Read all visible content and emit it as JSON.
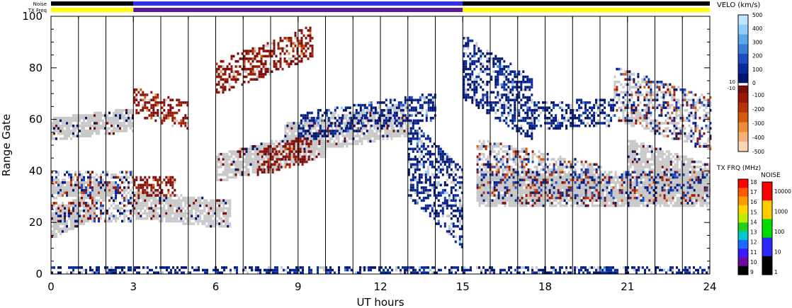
{
  "chart_data": {
    "type": "heatmap",
    "title": "",
    "xlabel": "UT hours",
    "ylabel": "Range Gate",
    "x_ticks": [
      "0",
      "3",
      "6",
      "9",
      "12",
      "15",
      "18",
      "21",
      "24"
    ],
    "y_ticks": [
      "0",
      "20",
      "40",
      "60",
      "80",
      "100"
    ],
    "xlim": [
      0,
      24
    ],
    "ylim": [
      0,
      100
    ],
    "grid": "vertical lines every hour",
    "top_strips": {
      "noise_label": "Noise",
      "txfreq_label": "TX Freq",
      "txfreq_segments": [
        {
          "from": 0,
          "to": 3,
          "color": "#ffff00"
        },
        {
          "from": 3,
          "to": 15,
          "color": "#5a1a9a"
        },
        {
          "from": 15,
          "to": 24,
          "color": "#ffff00"
        }
      ],
      "noise_color_early": "#000000",
      "noise_color_mid": "#3030e0"
    },
    "colorbar_velocity": {
      "title": "VELO (km/s)",
      "ticks_pos": [
        "500",
        "400",
        "300",
        "200",
        "100",
        "0"
      ],
      "ticks_neg": [
        "-100",
        "-200",
        "-300",
        "-400",
        "-500"
      ],
      "mid_labels": [
        "10",
        "-10"
      ],
      "colors": [
        "#bfe6ff",
        "#8ccfff",
        "#5aa8ec",
        "#3a7ed8",
        "#1e4cc0",
        "#0a2a9a",
        "#00156e",
        "#7a0d0d",
        "#9a1a08",
        "#b83408",
        "#d45a12",
        "#ee8a38",
        "#f7b27a",
        "#fbd6b4"
      ]
    },
    "colorbar_txfreq": {
      "title": "TX FRQ (MHz)",
      "ticks": [
        "18",
        "17",
        "16",
        "15",
        "14",
        "13",
        "12",
        "11",
        "10",
        "9"
      ],
      "colors": [
        "#ff0000",
        "#ff5a00",
        "#ff9a00",
        "#ffd400",
        "#b8f000",
        "#20d020",
        "#00c8c8",
        "#1a6aff",
        "#3a1aff",
        "#6a0aa0",
        "#000000"
      ]
    },
    "colorbar_noise": {
      "title": "NOISE",
      "ticks": [
        "10000",
        "1000",
        "100",
        "10",
        "1"
      ],
      "colors": [
        "#ff0000",
        "#ffcc00",
        "#00dd00",
        "#2a2aff",
        "#000000"
      ]
    },
    "echo_bands": [
      {
        "kind": "ground",
        "t0": 0.0,
        "t1": 3.0,
        "g0": 52,
        "g1": 60,
        "drift": 4
      },
      {
        "kind": "ground",
        "t0": 0.0,
        "t1": 1.6,
        "g0": 14,
        "g1": 24,
        "drift": 8
      },
      {
        "kind": "ground",
        "t0": 0.0,
        "t1": 2.4,
        "g0": 30,
        "g1": 36,
        "drift": 0
      },
      {
        "kind": "ground",
        "t0": 3.0,
        "t1": 6.5,
        "g0": 22,
        "g1": 32,
        "drift": -4
      },
      {
        "kind": "ground",
        "t0": 6.0,
        "t1": 10.0,
        "g0": 36,
        "g1": 46,
        "drift": 10
      },
      {
        "kind": "ground",
        "t0": 8.5,
        "t1": 13.0,
        "g0": 46,
        "g1": 58,
        "drift": 8
      },
      {
        "kind": "ground",
        "t0": 15.5,
        "t1": 24.0,
        "g0": 26,
        "g1": 38,
        "drift": 0
      },
      {
        "kind": "ground",
        "t0": 21.0,
        "t1": 24.0,
        "g0": 40,
        "g1": 52,
        "drift": -10
      },
      {
        "kind": "neg",
        "t0": 3.0,
        "t1": 5.0,
        "g0": 62,
        "g1": 72,
        "drift": -6
      },
      {
        "kind": "neg",
        "t0": 6.0,
        "t1": 9.5,
        "g0": 70,
        "g1": 82,
        "drift": 14
      },
      {
        "kind": "neg",
        "t0": 7.5,
        "t1": 9.5,
        "g0": 38,
        "g1": 48,
        "drift": 6
      },
      {
        "kind": "neg",
        "t0": 3.0,
        "t1": 4.5,
        "g0": 30,
        "g1": 38,
        "drift": 0
      },
      {
        "kind": "pos",
        "t0": 9.0,
        "t1": 14.0,
        "g0": 52,
        "g1": 62,
        "drift": 8
      },
      {
        "kind": "pos",
        "t0": 13.0,
        "t1": 15.0,
        "g0": 30,
        "g1": 60,
        "drift": -20
      },
      {
        "kind": "pos",
        "t0": 15.0,
        "t1": 17.5,
        "g0": 68,
        "g1": 92,
        "drift": -16
      },
      {
        "kind": "pos",
        "t0": 17.5,
        "t1": 20.5,
        "g0": 56,
        "g1": 66,
        "drift": 2
      },
      {
        "kind": "pos",
        "t0": 0.0,
        "t1": 24.0,
        "g0": 0,
        "g1": 3,
        "drift": 0
      },
      {
        "kind": "mixed",
        "t0": 15.5,
        "t1": 24.0,
        "g0": 28,
        "g1": 40,
        "drift": 0
      },
      {
        "kind": "mixed",
        "t0": 15.5,
        "t1": 20.0,
        "g0": 38,
        "g1": 52,
        "drift": -10
      },
      {
        "kind": "mixed",
        "t0": 20.5,
        "t1": 24.0,
        "g0": 60,
        "g1": 80,
        "drift": -12
      },
      {
        "kind": "mixed",
        "t0": 0.0,
        "t1": 3.0,
        "g0": 20,
        "g1": 40,
        "drift": 0
      }
    ]
  }
}
